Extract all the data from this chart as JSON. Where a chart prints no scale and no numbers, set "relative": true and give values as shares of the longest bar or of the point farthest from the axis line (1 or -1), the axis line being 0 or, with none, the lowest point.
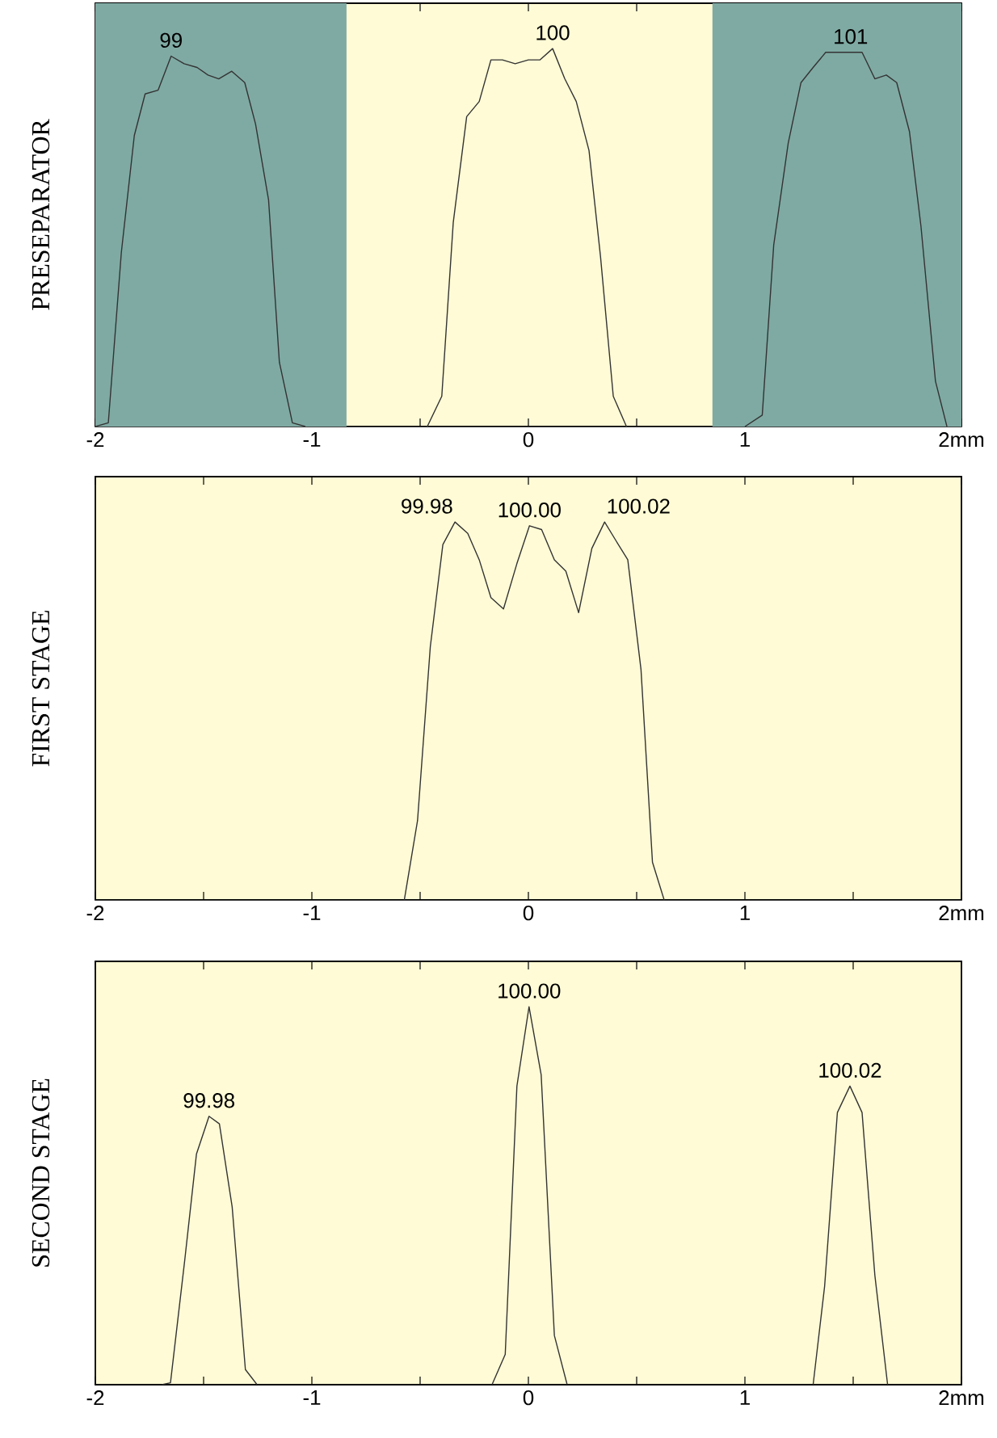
{
  "chart_data": [
    {
      "type": "line",
      "ylabel": "PRESEPARATOR",
      "relative": true,
      "xlim": [
        -2,
        2
      ],
      "xticks": [
        -2,
        {
          "value": -1.5,
          "label": null
        },
        -1,
        {
          "value": -0.5,
          "label": null
        },
        0,
        {
          "value": 0.5,
          "label": null
        },
        1,
        {
          "value": 1.5,
          "label": null
        },
        {
          "value": 2,
          "label": "2mm"
        }
      ],
      "bands": [
        {
          "axis": "x",
          "from": -2,
          "to": -0.84,
          "color": "#7faaa3"
        },
        {
          "axis": "x",
          "from": 0.85,
          "to": 2,
          "color": "#7faaa3"
        }
      ],
      "series": [
        {
          "color": "#333333",
          "x": [
            -2.0,
            -1.94,
            -1.88,
            -1.82,
            -1.77,
            -1.71,
            -1.65,
            -1.59,
            -1.53,
            -1.48,
            -1.43,
            -1.37,
            -1.31,
            -1.26,
            -1.2,
            -1.15,
            -1.09,
            -1.03
          ],
          "values": [
            0,
            0.01,
            0.46,
            0.77,
            0.88,
            0.89,
            0.98,
            0.96,
            0.95,
            0.93,
            0.92,
            0.94,
            0.91,
            0.8,
            0.6,
            0.17,
            0.01,
            0
          ]
        },
        {
          "color": "#333333",
          "x": [
            -0.467,
            -0.4,
            -0.347,
            -0.285,
            -0.227,
            -0.173,
            -0.12,
            -0.061,
            0,
            0.053,
            0.112,
            0.168,
            0.221,
            0.28,
            0.333,
            0.392,
            0.453
          ],
          "values": [
            0,
            0.08,
            0.54,
            0.82,
            0.86,
            0.97,
            0.97,
            0.96,
            0.97,
            0.97,
            1.0,
            0.92,
            0.86,
            0.73,
            0.45,
            0.08,
            0
          ]
        },
        {
          "color": "#333333",
          "x": [
            1.0,
            1.08,
            1.133,
            1.2,
            1.259,
            1.315,
            1.373,
            1.427,
            1.488,
            1.541,
            1.6,
            1.653,
            1.701,
            1.76,
            1.813,
            1.88,
            1.933
          ],
          "values": [
            0,
            0.03,
            0.48,
            0.75,
            0.91,
            0.95,
            0.99,
            0.99,
            0.99,
            0.99,
            0.92,
            0.93,
            0.91,
            0.78,
            0.53,
            0.12,
            0
          ]
        }
      ],
      "annotations": [
        {
          "text": "99",
          "x": -1.65,
          "y": 0.98
        },
        {
          "text": "100",
          "x": 0.112,
          "y": 1.0
        },
        {
          "text": "101",
          "x": 1.488,
          "y": 0.99
        }
      ]
    },
    {
      "type": "line",
      "ylabel": "FIRST STAGE",
      "relative": true,
      "xlim": [
        -2,
        2
      ],
      "xticks": [
        -2,
        {
          "value": -1.5,
          "label": null
        },
        -1,
        {
          "value": -0.5,
          "label": null
        },
        0,
        {
          "value": 0.5,
          "label": null
        },
        1,
        {
          "value": 1.5,
          "label": null
        },
        {
          "value": 2,
          "label": "2mm"
        }
      ],
      "series": [
        {
          "color": "#333333",
          "x": [
            -0.573,
            -0.512,
            -0.453,
            -0.395,
            -0.339,
            -0.28,
            -0.227,
            -0.173,
            -0.115,
            -0.053,
            0.005,
            0.061,
            0.12,
            0.173,
            0.232,
            0.293,
            0.352,
            0.405,
            0.459,
            0.52,
            0.573,
            0.627
          ],
          "values": [
            0,
            0.21,
            0.67,
            0.94,
            1.0,
            0.97,
            0.9,
            0.8,
            0.77,
            0.89,
            0.99,
            0.98,
            0.9,
            0.87,
            0.76,
            0.93,
            1.0,
            0.95,
            0.9,
            0.61,
            0.1,
            0
          ]
        }
      ],
      "annotations": [
        {
          "text": "99.98",
          "x": -0.339,
          "y": 1.0
        },
        {
          "text": "100.00",
          "x": 0.005,
          "y": 0.99
        },
        {
          "text": "100.02",
          "x": 0.352,
          "y": 1.0
        }
      ]
    },
    {
      "type": "line",
      "ylabel": "SECOND STAGE",
      "relative": true,
      "xlim": [
        -2,
        2
      ],
      "xticks": [
        -2,
        {
          "value": -1.5,
          "label": null
        },
        -1,
        {
          "value": -0.5,
          "label": null
        },
        0,
        {
          "value": 0.5,
          "label": null
        },
        1,
        {
          "value": 1.5,
          "label": null
        },
        {
          "value": 2,
          "label": "2mm"
        }
      ],
      "series": [
        {
          "color": "#333333",
          "x": [
            -1.693,
            -1.653,
            -1.587,
            -1.533,
            -1.475,
            -1.427,
            -1.368,
            -1.307,
            -1.253
          ],
          "values": [
            0,
            0.005,
            0.33,
            0.61,
            0.71,
            0.69,
            0.47,
            0.04,
            0
          ]
        },
        {
          "color": "#333333",
          "x": [
            -0.168,
            -0.107,
            -0.053,
            0.003,
            0.059,
            0.12,
            0.179
          ],
          "values": [
            0,
            0.08,
            0.79,
            1.0,
            0.82,
            0.13,
            0
          ]
        },
        {
          "color": "#333333",
          "x": [
            1.315,
            1.368,
            1.427,
            1.485,
            1.541,
            1.6,
            1.659
          ],
          "values": [
            0,
            0.26,
            0.72,
            0.79,
            0.72,
            0.29,
            0
          ]
        }
      ],
      "annotations": [
        {
          "text": "99.98",
          "x": -1.475,
          "y": 0.71
        },
        {
          "text": "100.00",
          "x": 0.003,
          "y": 1.0
        },
        {
          "text": "100.02",
          "x": 1.485,
          "y": 0.79
        }
      ]
    }
  ]
}
